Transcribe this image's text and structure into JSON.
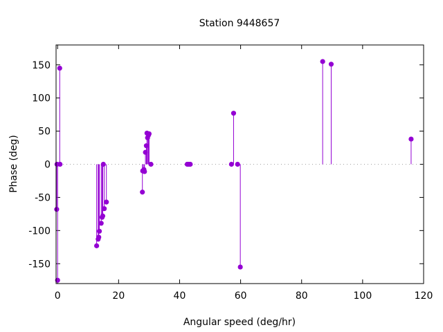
{
  "chart_data": {
    "type": "scatter",
    "style": "impulses-with-points",
    "title": "Station 9448657",
    "xlabel": "Angular speed (deg/hr)",
    "ylabel": "Phase (deg)",
    "xlim": [
      -0.5,
      120
    ],
    "ylim": [
      -180,
      180
    ],
    "xticks": [
      0,
      20,
      40,
      60,
      80,
      100,
      120
    ],
    "yticks": [
      -150,
      -100,
      -50,
      0,
      50,
      100,
      150
    ],
    "baseline": 0,
    "grid": false,
    "legend": "none",
    "color": "#9400d3",
    "series": [
      {
        "points": [
          [
            0.0,
            -175
          ],
          [
            -0.3,
            -68
          ],
          [
            -0.2,
            0
          ],
          [
            0.7,
            145
          ],
          [
            0.8,
            0
          ],
          [
            12.8,
            -123
          ],
          [
            13.3,
            -113
          ],
          [
            13.5,
            -110
          ],
          [
            13.7,
            -101
          ],
          [
            14.3,
            -89
          ],
          [
            14.6,
            -80
          ],
          [
            14.8,
            -78
          ],
          [
            15.0,
            0
          ],
          [
            15.3,
            -67
          ],
          [
            16.0,
            -57
          ],
          [
            27.8,
            -42
          ],
          [
            27.9,
            -10
          ],
          [
            28.3,
            -8
          ],
          [
            28.5,
            -11
          ],
          [
            28.8,
            18
          ],
          [
            29.1,
            28
          ],
          [
            29.3,
            47
          ],
          [
            29.5,
            40
          ],
          [
            29.8,
            44
          ],
          [
            30.0,
            46
          ],
          [
            30.6,
            0
          ],
          [
            42.5,
            0
          ],
          [
            43.0,
            0
          ],
          [
            43.5,
            0
          ],
          [
            57.0,
            0
          ],
          [
            57.7,
            77
          ],
          [
            59.0,
            0
          ],
          [
            59.9,
            -155
          ],
          [
            86.9,
            155
          ],
          [
            89.7,
            151
          ],
          [
            115.9,
            38
          ]
        ]
      }
    ]
  }
}
